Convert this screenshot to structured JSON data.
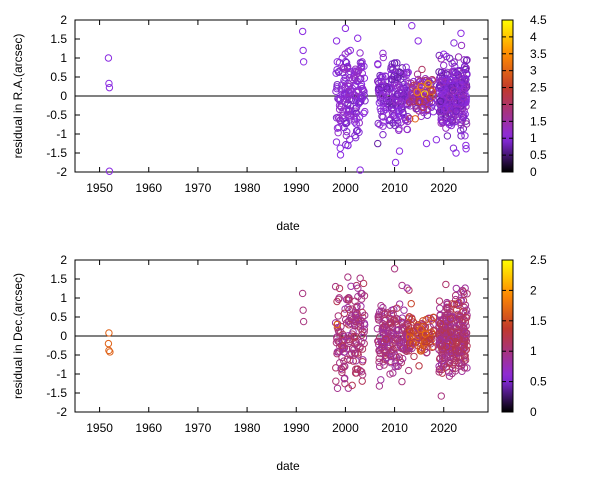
{
  "chart_data": [
    {
      "type": "scatter",
      "title": "",
      "xlabel": "date",
      "ylabel": "residual in R.A.(arcsec)",
      "xlim": [
        1945,
        2029
      ],
      "ylim": [
        -2,
        2
      ],
      "xticks": [
        "1950",
        "1960",
        "1970",
        "1980",
        "1990",
        "2000",
        "2010",
        "2020"
      ],
      "yticks": [
        "-2",
        "-1.5",
        "-1",
        "-0.5",
        "0",
        "0.5",
        "1",
        "1.5",
        "2"
      ],
      "colorbar": {
        "range": [
          0,
          4.5
        ],
        "ticks": [
          "0",
          "0.5",
          "1",
          "1.5",
          "2",
          "2.5",
          "3",
          "3.5",
          "4",
          "4.5"
        ]
      },
      "zero_line": true,
      "marker": "open-circle",
      "colors": {
        "low": "#000000",
        "mid": "#8a2be2",
        "mid2": "#c0392b",
        "high": "#ffff00"
      },
      "points": [
        {
          "x": 1951.8,
          "y": 1.0,
          "c": 1.0
        },
        {
          "x": 1951.9,
          "y": 0.33,
          "c": 1.0
        },
        {
          "x": 1952.0,
          "y": 0.22,
          "c": 1.0
        },
        {
          "x": 1952.0,
          "y": -1.98,
          "c": 1.0
        },
        {
          "x": 1991.3,
          "y": 1.7,
          "c": 1.0
        },
        {
          "x": 1991.4,
          "y": 1.2,
          "c": 1.0
        },
        {
          "x": 1991.5,
          "y": 0.9,
          "c": 1.0
        },
        {
          "x": 1998.2,
          "y": 1.45,
          "c": 1.0
        },
        {
          "x": 2000.0,
          "y": 1.78,
          "c": 1.0
        },
        {
          "x": 2001.0,
          "y": 1.2,
          "c": 1.0
        },
        {
          "x": 2002.5,
          "y": 1.52,
          "c": 1.0
        },
        {
          "x": 2003.0,
          "y": -1.95,
          "c": 1.0
        },
        {
          "x": 1999.0,
          "y": -1.55,
          "c": 1.0
        },
        {
          "x": 2000.5,
          "y": -1.3,
          "c": 1.0
        },
        {
          "x": 2010.2,
          "y": -1.75,
          "c": 1.0
        },
        {
          "x": 2011.0,
          "y": -1.45,
          "c": 1.0
        },
        {
          "x": 2013.5,
          "y": 1.85,
          "c": 1.0
        },
        {
          "x": 2014.8,
          "y": 1.45,
          "c": 1.0
        },
        {
          "x": 2016.5,
          "y": -1.25,
          "c": 1.0
        },
        {
          "x": 2018.5,
          "y": -1.15,
          "c": 1.0
        },
        {
          "x": 2020.0,
          "y": 1.1,
          "c": 1.0
        },
        {
          "x": 2022.5,
          "y": -1.5,
          "c": 1.0
        },
        {
          "x": 2023.5,
          "y": 1.65,
          "c": 1.0
        },
        {
          "x": 2024.5,
          "y": -1.3,
          "c": 1.0
        },
        {
          "x": 2014.2,
          "y": -0.6,
          "c": 3.0
        },
        {
          "x": 2014.6,
          "y": 0.1,
          "c": 3.5
        },
        {
          "x": 2015.0,
          "y": -0.15,
          "c": 2.6
        },
        {
          "x": 2015.4,
          "y": 0.25,
          "c": 3.2
        },
        {
          "x": 2015.8,
          "y": -0.3,
          "c": 2.2
        },
        {
          "x": 2016.1,
          "y": 0.05,
          "c": 4.2
        },
        {
          "x": 2016.4,
          "y": -0.1,
          "c": 2.0
        },
        {
          "x": 2016.8,
          "y": 0.32,
          "c": 3.8
        },
        {
          "x": 2017.2,
          "y": -0.05,
          "c": 2.4
        },
        {
          "x": 2017.6,
          "y": 0.12,
          "c": 2.8
        }
      ],
      "clusters": [
        {
          "x_from": 1998.0,
          "x_to": 2004.0,
          "y_sd": 0.6,
          "count": 170,
          "c_min": 0.8,
          "c_max": 1.3
        },
        {
          "x_from": 2006.5,
          "x_to": 2013.0,
          "y_sd": 0.42,
          "count": 200,
          "c_min": 0.7,
          "c_max": 1.3
        },
        {
          "x_from": 2013.0,
          "x_to": 2018.0,
          "y_sd": 0.28,
          "count": 110,
          "c_min": 0.8,
          "c_max": 2.2
        },
        {
          "x_from": 2019.0,
          "x_to": 2024.8,
          "y_sd": 0.5,
          "count": 330,
          "c_min": 0.7,
          "c_max": 1.4
        }
      ]
    },
    {
      "type": "scatter",
      "title": "",
      "xlabel": "date",
      "ylabel": "residual in Dec.(arcsec)",
      "xlim": [
        1945,
        2029
      ],
      "ylim": [
        -2,
        2
      ],
      "xticks": [
        "1950",
        "1960",
        "1970",
        "1980",
        "1990",
        "2000",
        "2010",
        "2020"
      ],
      "yticks": [
        "-2",
        "-1.5",
        "-1",
        "-0.5",
        "0",
        "0.5",
        "1",
        "1.5",
        "2"
      ],
      "colorbar": {
        "range": [
          0,
          2.5
        ],
        "ticks": [
          "0",
          "0.5",
          "1",
          "1.5",
          "2",
          "2.5"
        ]
      },
      "zero_line": true,
      "marker": "open-circle",
      "colors": {
        "low": "#000000",
        "mid": "#8a2be2",
        "mid2": "#c0392b",
        "high": "#ffff00"
      },
      "points": [
        {
          "x": 1951.9,
          "y": 0.08,
          "c": 1.65
        },
        {
          "x": 1951.8,
          "y": -0.2,
          "c": 1.65
        },
        {
          "x": 1951.9,
          "y": -0.38,
          "c": 1.65
        },
        {
          "x": 1952.1,
          "y": -0.42,
          "c": 1.65
        },
        {
          "x": 1991.3,
          "y": 1.12,
          "c": 1.0
        },
        {
          "x": 1991.4,
          "y": 0.68,
          "c": 1.0
        },
        {
          "x": 1991.5,
          "y": 0.38,
          "c": 1.0
        },
        {
          "x": 1998.3,
          "y": 0.3,
          "c": 1.7
        },
        {
          "x": 1998.0,
          "y": 1.3,
          "c": 1.0
        },
        {
          "x": 2000.5,
          "y": 1.55,
          "c": 1.0
        },
        {
          "x": 2003.0,
          "y": 1.52,
          "c": 1.0
        },
        {
          "x": 2010.0,
          "y": 1.77,
          "c": 1.0
        },
        {
          "x": 2019.5,
          "y": -1.58,
          "c": 1.0
        },
        {
          "x": 2003.5,
          "y": -1.02,
          "c": 1.0
        },
        {
          "x": 2011.5,
          "y": -1.2,
          "c": 1.0
        },
        {
          "x": 2015.3,
          "y": 0.18,
          "c": 1.7
        },
        {
          "x": 2015.8,
          "y": -0.05,
          "c": 1.5
        },
        {
          "x": 2016.3,
          "y": 0.05,
          "c": 1.8
        },
        {
          "x": 2017.0,
          "y": -0.1,
          "c": 1.4
        },
        {
          "x": 2017.5,
          "y": 0.1,
          "c": 1.6
        }
      ],
      "clusters": [
        {
          "x_from": 1998.0,
          "x_to": 2004.0,
          "y_sd": 0.6,
          "count": 160,
          "c_min": 0.8,
          "c_max": 1.2
        },
        {
          "x_from": 2006.5,
          "x_to": 2013.0,
          "y_sd": 0.45,
          "count": 200,
          "c_min": 0.8,
          "c_max": 1.2
        },
        {
          "x_from": 2013.0,
          "x_to": 2018.0,
          "y_sd": 0.25,
          "count": 110,
          "c_min": 0.9,
          "c_max": 1.7
        },
        {
          "x_from": 2019.0,
          "x_to": 2024.8,
          "y_sd": 0.5,
          "count": 330,
          "c_min": 0.8,
          "c_max": 1.3
        }
      ]
    }
  ]
}
